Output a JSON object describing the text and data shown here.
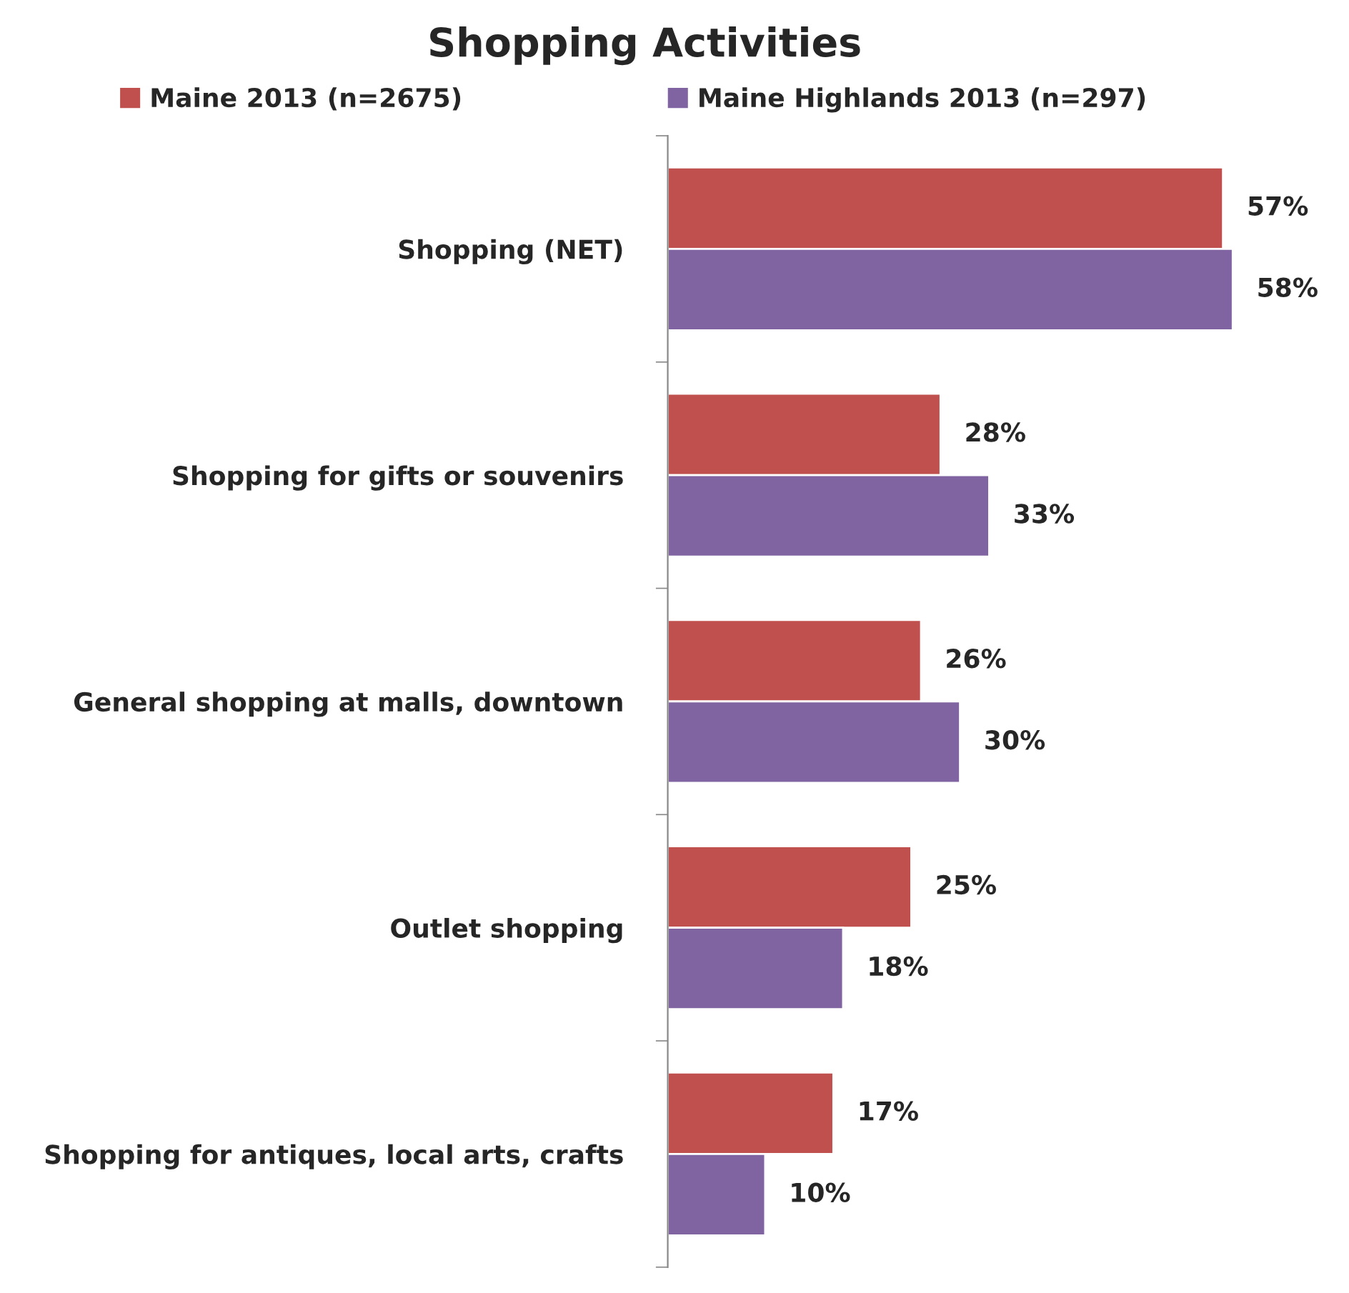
{
  "chart_data": {
    "type": "bar",
    "orientation": "horizontal",
    "title": "Shopping Activities",
    "categories": [
      "Shopping (NET)",
      "Shopping for gifts or souvenirs",
      "General shopping at malls, downtown",
      "Outlet shopping",
      "Shopping for antiques, local arts, crafts"
    ],
    "series": [
      {
        "name": "Maine 2013 (n=2675)",
        "color": "#c0504d",
        "values": [
          57,
          28,
          26,
          25,
          17
        ],
        "value_labels": [
          "57%",
          "28%",
          "26%",
          "25%",
          "17%"
        ]
      },
      {
        "name": "Maine Highlands 2013 (n=297)",
        "color": "#8064a2",
        "values": [
          58,
          33,
          30,
          18,
          10
        ],
        "value_labels": [
          "58%",
          "33%",
          "30%",
          "18%",
          "10%"
        ]
      }
    ],
    "legend": "top",
    "grid": false
  }
}
